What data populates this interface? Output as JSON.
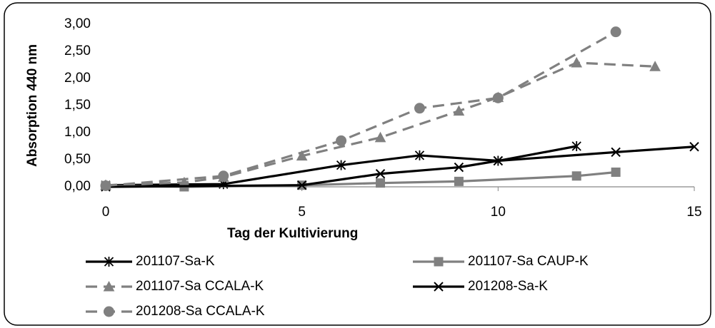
{
  "chart_data": {
    "type": "line",
    "xlabel": "Tag der Kultivierung",
    "ylabel": "Absorption 440 nm",
    "xlim": [
      0,
      15
    ],
    "xticks": [
      0,
      5,
      10,
      15
    ],
    "ylim": [
      0,
      3
    ],
    "yticks": [
      {
        "value": 0,
        "label": "0,00"
      },
      {
        "value": 0.5,
        "label": "0,50"
      },
      {
        "value": 1,
        "label": "1,00"
      },
      {
        "value": 1.5,
        "label": "1,50"
      },
      {
        "value": 2,
        "label": "2,00"
      },
      {
        "value": 2.5,
        "label": "2,50"
      },
      {
        "value": 3,
        "label": "3,00"
      }
    ],
    "grid": false,
    "legend": "bottom",
    "series": [
      {
        "name": "201107-Sa-K",
        "color": "#000000",
        "marker": "asterisk",
        "dash": false,
        "x": [
          0,
          3,
          6,
          8,
          10,
          12
        ],
        "values": [
          0.03,
          0.05,
          0.4,
          0.58,
          0.48,
          0.75
        ]
      },
      {
        "name": "201107-Sa CAUP-K",
        "color": "#808080",
        "marker": "square",
        "dash": false,
        "x": [
          0,
          2,
          5,
          7,
          9,
          12,
          13
        ],
        "values": [
          0.02,
          0.0,
          0.03,
          0.07,
          0.1,
          0.2,
          0.27
        ]
      },
      {
        "name": "201107-Sa CCALA-K",
        "color": "#808080",
        "marker": "triangle",
        "dash": true,
        "x": [
          0,
          2,
          3,
          5,
          7,
          9,
          10,
          12,
          14
        ],
        "values": [
          0.03,
          0.08,
          0.18,
          0.57,
          0.91,
          1.4,
          1.65,
          2.29,
          2.22
        ]
      },
      {
        "name": "201208-Sa-K",
        "color": "#000000",
        "marker": "x",
        "dash": false,
        "x": [
          0,
          5,
          7,
          9,
          10,
          13,
          15
        ],
        "values": [
          0.0,
          0.03,
          0.24,
          0.36,
          0.48,
          0.64,
          0.74
        ]
      },
      {
        "name": "201208-Sa CCALA-K",
        "color": "#808080",
        "marker": "circle",
        "dash": true,
        "x": [
          0,
          3,
          6,
          8,
          10,
          13
        ],
        "values": [
          0.02,
          0.2,
          0.85,
          1.45,
          1.64,
          2.86
        ]
      }
    ]
  }
}
